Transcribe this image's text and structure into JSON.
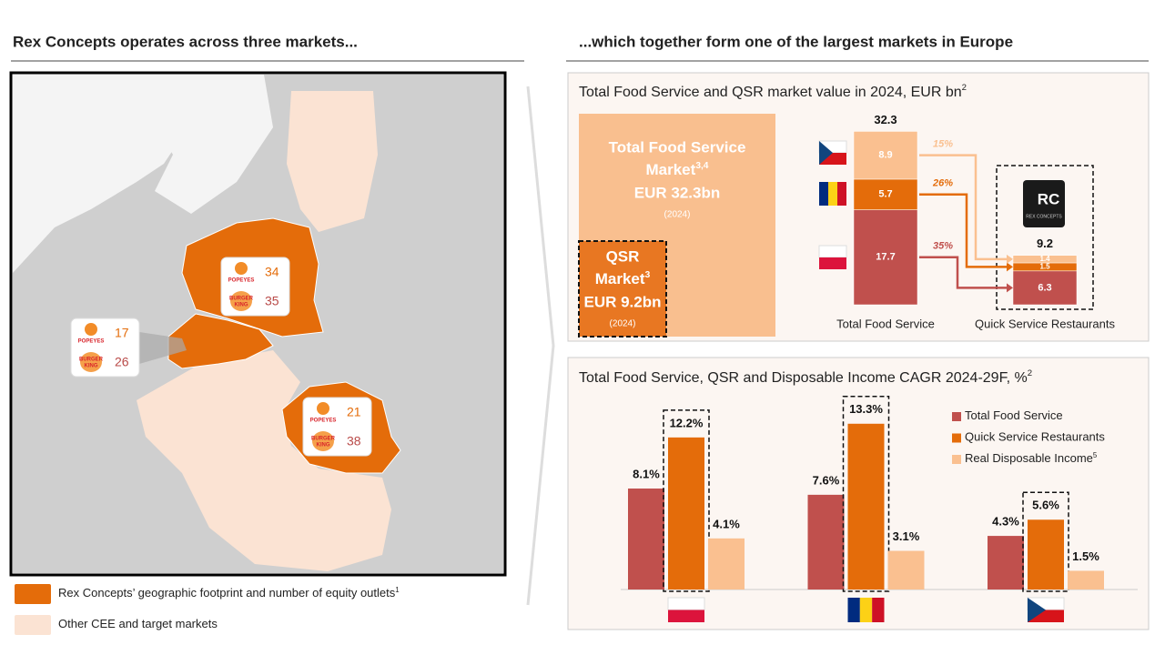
{
  "left": {
    "heading": "Rex Concepts operates across three markets...",
    "brands": {
      "popeyes": "POPEYES",
      "burger_king": [
        "BURGER",
        "KING"
      ]
    },
    "markets": [
      {
        "popeyes": 34,
        "burger_king": 35
      },
      {
        "popeyes": 17,
        "burger_king": 26
      },
      {
        "popeyes": 21,
        "burger_king": 38
      }
    ],
    "legend": [
      {
        "text": "Rex Concepts’ geographic footprint and number of equity outlets",
        "note": "1"
      },
      {
        "text": "Other CEE and target markets"
      }
    ]
  },
  "right": {
    "heading": "...which together form one of the largest markets in Europe"
  },
  "chart_data": [
    {
      "type": "stacked_bar",
      "title": "Total Food Service and QSR market value in 2024, EUR bn",
      "title_note": "2",
      "boxes": [
        {
          "lines": [
            "Total Food Service",
            "Market"
          ],
          "note": "3,4",
          "value": "EUR 32.3bn",
          "year": "(2024)"
        },
        {
          "lines": [
            "QSR",
            "Market"
          ],
          "note": "3",
          "value": "EUR 9.2bn",
          "year": "(2024)"
        }
      ],
      "categories": [
        "Total Food Service",
        "Quick Service Restaurants"
      ],
      "series": [
        {
          "color": "#c0504d",
          "values": [
            17.7,
            6.3
          ]
        },
        {
          "color": "#e46c0a",
          "values": [
            5.7,
            1.5
          ]
        },
        {
          "color": "#fac090",
          "values": [
            8.9,
            1.4
          ]
        }
      ],
      "totals": [
        32.3,
        9.2
      ],
      "shares": [
        35,
        26,
        15
      ],
      "share_labels": [
        "35%",
        "26%",
        "15%"
      ],
      "logo": {
        "mark": "RC",
        "text": "REX CONCEPTS"
      }
    },
    {
      "type": "grouped_bar",
      "title": "Total Food Service, QSR and Disposable Income CAGR 2024-29F, %",
      "title_note": "2",
      "categories": [
        null,
        null,
        null
      ],
      "series": [
        {
          "name": "Total Food Service",
          "color": "#c0504d",
          "values": [
            8.1,
            7.6,
            4.3
          ],
          "value_labels": [
            "8.1%",
            "7.6%",
            "4.3%"
          ]
        },
        {
          "name": "Quick Service Restaurants",
          "color": "#e46c0a",
          "values": [
            12.2,
            13.3,
            5.6
          ],
          "value_labels": [
            "12.2%",
            "13.3%",
            "5.6%"
          ]
        },
        {
          "name": "Real Disposable Income",
          "note": "5",
          "color": "#fac090",
          "values": [
            4.1,
            3.1,
            1.5
          ],
          "value_labels": [
            "4.1%",
            "3.1%",
            "1.5%"
          ]
        }
      ]
    }
  ]
}
